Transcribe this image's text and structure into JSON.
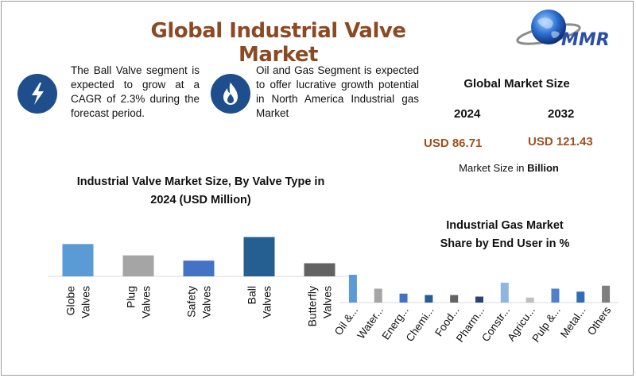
{
  "header": {
    "title": "Global Industrial Valve Market",
    "logo_text": "MMR"
  },
  "notes": [
    {
      "icon": "lightning-bolt-icon",
      "text": "The Ball Valve segment is expected to grow at a CAGR of 2.3% during the forecast period."
    },
    {
      "icon": "flame-icon",
      "text": "Oil and Gas Segment is expected to offer lucrative growth potential in North America Industrial gas Market"
    }
  ],
  "market_size": {
    "title": "Global Market Size",
    "year1": "2024",
    "year2": "2032",
    "value1": "USD 86.71",
    "value2": "USD 121.43",
    "label_prefix": "Market Size in ",
    "label_unit": "Billion"
  },
  "colors": {
    "title": "#8b4a24",
    "accent_value": "#a0501e",
    "icon_bg": "#1f4e8c"
  },
  "chart_data": [
    {
      "type": "bar",
      "title_line1": "Industrial Valve Market Size, By Valve Type in",
      "title_line2": "2024 (USD Million)",
      "categories": [
        [
          "Globe",
          "Valves"
        ],
        [
          "Plug",
          "Valves"
        ],
        [
          "Safety",
          "Valves"
        ],
        [
          "Ball",
          "Valves"
        ],
        [
          "Butterfly",
          "Valves"
        ]
      ],
      "values": [
        37,
        24,
        18,
        45,
        15
      ],
      "colors": [
        "#5b9bd5",
        "#a5a5a5",
        "#4472c4",
        "#255e91",
        "#636363"
      ],
      "ylim": [
        0,
        50
      ],
      "grid": false
    },
    {
      "type": "bar",
      "title_line1": "Industrial Gas Market",
      "title_line2": "Share by End User in %",
      "categories": [
        "Oil &...",
        "Water...",
        "Energ...",
        "Chemi...",
        "Food...",
        "Pharm...",
        "Constr...",
        "Agricu...",
        "Pulp &...",
        "Metal...",
        "Others"
      ],
      "values": [
        14,
        7,
        4.5,
        3.8,
        3.8,
        3,
        10,
        2.5,
        7,
        5.5,
        8.5
      ],
      "colors": [
        "#5b9bd5",
        "#a5a5a5",
        "#4472c4",
        "#255e91",
        "#636363",
        "#264478",
        "#8fb6e0",
        "#bfbfbf",
        "#4f7fce",
        "#2e6db4",
        "#7f7f7f"
      ],
      "ylim": [
        0,
        16
      ],
      "grid": false
    }
  ]
}
